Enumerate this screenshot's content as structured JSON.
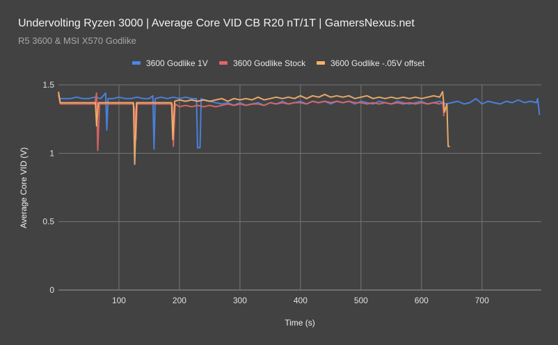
{
  "chart_data": {
    "type": "line",
    "title": "Undervolting Ryzen 3000 | Average Core VID CB R20 nT/1T | GamersNexus.net",
    "subtitle": "R5 3600 & MSI X570 Godlike",
    "xlabel": "Time (s)",
    "ylabel": "Average Core VID (V)",
    "xlim": [
      0,
      798
    ],
    "ylim": [
      0,
      1.5
    ],
    "xticks": [
      100,
      200,
      300,
      400,
      500,
      600,
      700
    ],
    "yticks": [
      0,
      0.5,
      1,
      1.5
    ],
    "ytick_labels": [
      "0",
      "0.5",
      "1",
      "1.5"
    ],
    "grid": true,
    "legend_position": "top",
    "series": [
      {
        "name": "3600 Godlike 1V",
        "color": "#4a86e8",
        "points": [
          [
            0,
            1.43
          ],
          [
            2,
            1.4
          ],
          [
            10,
            1.4
          ],
          [
            20,
            1.4
          ],
          [
            30,
            1.41
          ],
          [
            40,
            1.4
          ],
          [
            50,
            1.4
          ],
          [
            60,
            1.41
          ],
          [
            70,
            1.4
          ],
          [
            78,
            1.44
          ],
          [
            80,
            1.17
          ],
          [
            82,
            1.4
          ],
          [
            90,
            1.4
          ],
          [
            100,
            1.41
          ],
          [
            110,
            1.4
          ],
          [
            120,
            1.4
          ],
          [
            130,
            1.41
          ],
          [
            140,
            1.4
          ],
          [
            150,
            1.4
          ],
          [
            156,
            1.42
          ],
          [
            158,
            1.03
          ],
          [
            160,
            1.4
          ],
          [
            170,
            1.41
          ],
          [
            180,
            1.4
          ],
          [
            190,
            1.41
          ],
          [
            200,
            1.4
          ],
          [
            210,
            1.41
          ],
          [
            220,
            1.4
          ],
          [
            228,
            1.4
          ],
          [
            230,
            1.04
          ],
          [
            234,
            1.04
          ],
          [
            236,
            1.4
          ],
          [
            240,
            1.39
          ],
          [
            250,
            1.38
          ],
          [
            260,
            1.37
          ],
          [
            270,
            1.36
          ],
          [
            280,
            1.37
          ],
          [
            290,
            1.35
          ],
          [
            300,
            1.37
          ],
          [
            310,
            1.35
          ],
          [
            320,
            1.36
          ],
          [
            330,
            1.37
          ],
          [
            340,
            1.35
          ],
          [
            350,
            1.37
          ],
          [
            360,
            1.36
          ],
          [
            370,
            1.38
          ],
          [
            380,
            1.36
          ],
          [
            390,
            1.37
          ],
          [
            400,
            1.38
          ],
          [
            410,
            1.36
          ],
          [
            420,
            1.38
          ],
          [
            430,
            1.37
          ],
          [
            440,
            1.38
          ],
          [
            450,
            1.36
          ],
          [
            460,
            1.38
          ],
          [
            470,
            1.37
          ],
          [
            480,
            1.38
          ],
          [
            490,
            1.36
          ],
          [
            500,
            1.38
          ],
          [
            510,
            1.37
          ],
          [
            520,
            1.36
          ],
          [
            530,
            1.38
          ],
          [
            540,
            1.37
          ],
          [
            550,
            1.36
          ],
          [
            560,
            1.38
          ],
          [
            570,
            1.37
          ],
          [
            580,
            1.36
          ],
          [
            590,
            1.37
          ],
          [
            600,
            1.38
          ],
          [
            610,
            1.36
          ],
          [
            620,
            1.37
          ],
          [
            630,
            1.38
          ],
          [
            640,
            1.36
          ],
          [
            650,
            1.37
          ],
          [
            660,
            1.38
          ],
          [
            670,
            1.36
          ],
          [
            680,
            1.37
          ],
          [
            690,
            1.4
          ],
          [
            700,
            1.36
          ],
          [
            710,
            1.38
          ],
          [
            720,
            1.37
          ],
          [
            730,
            1.36
          ],
          [
            740,
            1.38
          ],
          [
            750,
            1.37
          ],
          [
            760,
            1.39
          ],
          [
            770,
            1.37
          ],
          [
            780,
            1.38
          ],
          [
            790,
            1.37
          ],
          [
            792,
            1.4
          ],
          [
            795,
            1.28
          ]
        ]
      },
      {
        "name": "3600 Godlike Stock",
        "color": "#e06666",
        "points": [
          [
            0,
            1.43
          ],
          [
            3,
            1.36
          ],
          [
            10,
            1.36
          ],
          [
            20,
            1.36
          ],
          [
            30,
            1.36
          ],
          [
            40,
            1.36
          ],
          [
            50,
            1.36
          ],
          [
            60,
            1.36
          ],
          [
            63,
            1.44
          ],
          [
            65,
            1.02
          ],
          [
            68,
            1.36
          ],
          [
            80,
            1.36
          ],
          [
            90,
            1.36
          ],
          [
            100,
            1.36
          ],
          [
            110,
            1.36
          ],
          [
            124,
            1.36
          ],
          [
            126,
            1.32
          ],
          [
            128,
            1.1
          ],
          [
            130,
            1.36
          ],
          [
            140,
            1.36
          ],
          [
            150,
            1.36
          ],
          [
            160,
            1.36
          ],
          [
            170,
            1.36
          ],
          [
            180,
            1.36
          ],
          [
            188,
            1.36
          ],
          [
            190,
            1.05
          ],
          [
            193,
            1.36
          ],
          [
            200,
            1.34
          ],
          [
            210,
            1.35
          ],
          [
            220,
            1.34
          ],
          [
            230,
            1.35
          ],
          [
            240,
            1.34
          ],
          [
            250,
            1.35
          ],
          [
            260,
            1.34
          ],
          [
            270,
            1.35
          ],
          [
            280,
            1.36
          ],
          [
            290,
            1.35
          ],
          [
            300,
            1.36
          ],
          [
            310,
            1.35
          ],
          [
            320,
            1.36
          ],
          [
            330,
            1.36
          ],
          [
            340,
            1.35
          ],
          [
            350,
            1.37
          ],
          [
            360,
            1.36
          ],
          [
            370,
            1.37
          ],
          [
            380,
            1.36
          ],
          [
            390,
            1.37
          ],
          [
            400,
            1.37
          ],
          [
            410,
            1.36
          ],
          [
            420,
            1.38
          ],
          [
            430,
            1.37
          ],
          [
            440,
            1.38
          ],
          [
            450,
            1.37
          ],
          [
            460,
            1.38
          ],
          [
            470,
            1.37
          ],
          [
            480,
            1.38
          ],
          [
            490,
            1.37
          ],
          [
            500,
            1.37
          ],
          [
            510,
            1.36
          ],
          [
            520,
            1.37
          ],
          [
            530,
            1.36
          ],
          [
            540,
            1.37
          ],
          [
            550,
            1.36
          ],
          [
            560,
            1.37
          ],
          [
            570,
            1.36
          ],
          [
            580,
            1.37
          ],
          [
            590,
            1.36
          ],
          [
            600,
            1.37
          ],
          [
            610,
            1.36
          ],
          [
            620,
            1.37
          ],
          [
            630,
            1.36
          ],
          [
            635,
            1.37
          ],
          [
            637,
            1.27
          ]
        ]
      },
      {
        "name": "3600 Godlike -.05V offset",
        "color": "#f6b26b",
        "points": [
          [
            0,
            1.45
          ],
          [
            3,
            1.37
          ],
          [
            10,
            1.37
          ],
          [
            20,
            1.37
          ],
          [
            30,
            1.37
          ],
          [
            40,
            1.37
          ],
          [
            50,
            1.37
          ],
          [
            61,
            1.37
          ],
          [
            63,
            1.2
          ],
          [
            66,
            1.37
          ],
          [
            80,
            1.37
          ],
          [
            90,
            1.37
          ],
          [
            100,
            1.37
          ],
          [
            110,
            1.37
          ],
          [
            124,
            1.37
          ],
          [
            126,
            0.92
          ],
          [
            129,
            1.37
          ],
          [
            140,
            1.37
          ],
          [
            150,
            1.37
          ],
          [
            160,
            1.37
          ],
          [
            170,
            1.37
          ],
          [
            187,
            1.37
          ],
          [
            189,
            1.1
          ],
          [
            192,
            1.38
          ],
          [
            200,
            1.39
          ],
          [
            210,
            1.38
          ],
          [
            220,
            1.39
          ],
          [
            230,
            1.38
          ],
          [
            240,
            1.39
          ],
          [
            250,
            1.38
          ],
          [
            260,
            1.39
          ],
          [
            270,
            1.4
          ],
          [
            280,
            1.38
          ],
          [
            290,
            1.4
          ],
          [
            300,
            1.39
          ],
          [
            310,
            1.4
          ],
          [
            320,
            1.39
          ],
          [
            330,
            1.41
          ],
          [
            340,
            1.39
          ],
          [
            350,
            1.4
          ],
          [
            360,
            1.41
          ],
          [
            370,
            1.4
          ],
          [
            380,
            1.41
          ],
          [
            390,
            1.4
          ],
          [
            400,
            1.42
          ],
          [
            410,
            1.4
          ],
          [
            420,
            1.42
          ],
          [
            430,
            1.41
          ],
          [
            440,
            1.43
          ],
          [
            450,
            1.41
          ],
          [
            460,
            1.42
          ],
          [
            470,
            1.41
          ],
          [
            480,
            1.42
          ],
          [
            490,
            1.4
          ],
          [
            500,
            1.41
          ],
          [
            510,
            1.42
          ],
          [
            520,
            1.4
          ],
          [
            530,
            1.41
          ],
          [
            540,
            1.4
          ],
          [
            550,
            1.41
          ],
          [
            560,
            1.4
          ],
          [
            570,
            1.41
          ],
          [
            580,
            1.4
          ],
          [
            590,
            1.41
          ],
          [
            600,
            1.4
          ],
          [
            610,
            1.41
          ],
          [
            620,
            1.42
          ],
          [
            630,
            1.41
          ],
          [
            635,
            1.45
          ],
          [
            638,
            1.3
          ],
          [
            642,
            1.36
          ],
          [
            644,
            1.05
          ],
          [
            647,
            1.05
          ]
        ]
      }
    ]
  }
}
